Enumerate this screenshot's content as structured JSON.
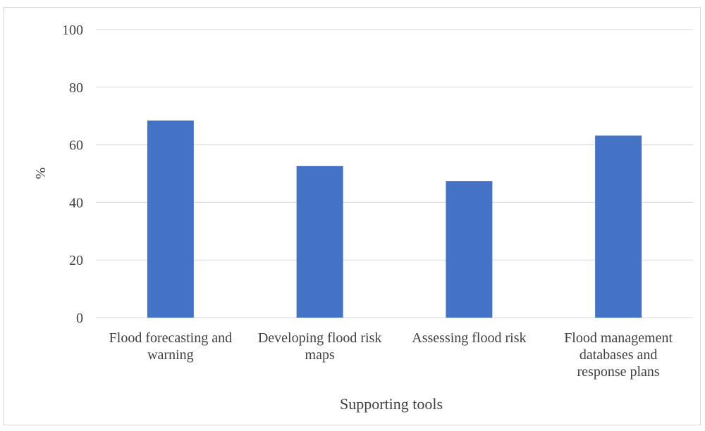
{
  "chart_data": {
    "type": "bar",
    "title": "",
    "xlabel": "Supporting tools",
    "ylabel": "%",
    "ylim": [
      0,
      100
    ],
    "yticks": [
      0,
      20,
      40,
      60,
      80,
      100
    ],
    "grid": true,
    "legend": "none",
    "bar_color": "#4472c4",
    "gridline_color": "#d9d9d9",
    "categories": [
      [
        "Flood forecasting and",
        "warning"
      ],
      [
        "Developing flood risk",
        "maps"
      ],
      [
        "Assessing flood risk"
      ],
      [
        "Flood management",
        "databases and",
        "response plans"
      ]
    ],
    "values": [
      68.4,
      52.6,
      47.4,
      63.2
    ]
  }
}
